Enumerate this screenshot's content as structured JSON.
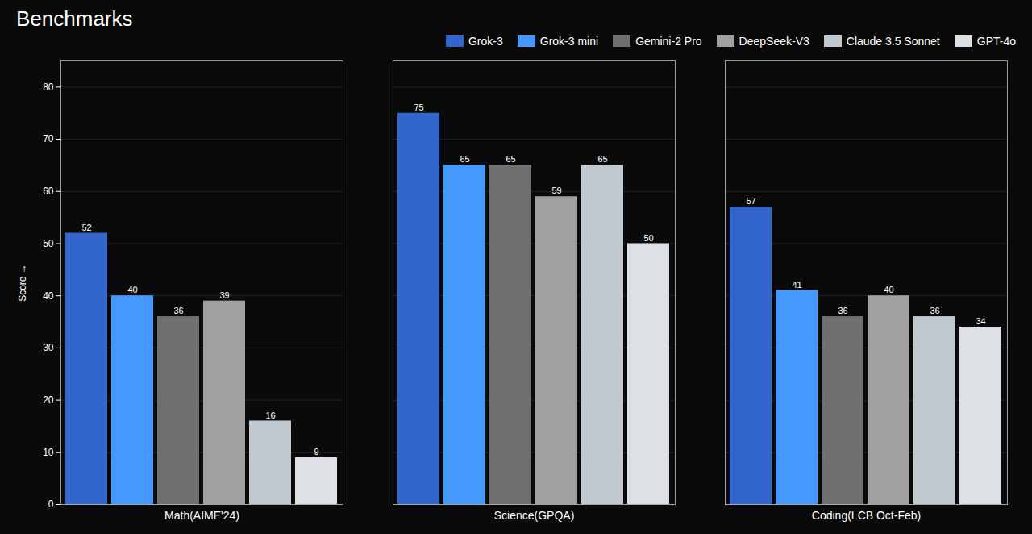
{
  "chart_data": {
    "type": "bar",
    "title": "Benchmarks",
    "categories": [
      "Math(AIME'24)",
      "Science(GPQA)",
      "Coding(LCB Oct-Feb)"
    ],
    "series": [
      {
        "name": "Grok-3",
        "color": "#3366cc",
        "values": [
          52,
          75,
          57
        ]
      },
      {
        "name": "Grok-3 mini",
        "color": "#4499ff",
        "values": [
          40,
          65,
          41
        ]
      },
      {
        "name": "Gemini-2 Pro",
        "color": "#707070",
        "values": [
          36,
          65,
          36
        ]
      },
      {
        "name": "DeepSeek-V3",
        "color": "#a0a0a0",
        "values": [
          39,
          59,
          40
        ]
      },
      {
        "name": "Claude 3.5 Sonnet",
        "color": "#c0c8d0",
        "values": [
          16,
          65,
          36
        ]
      },
      {
        "name": "GPT-4o",
        "color": "#dde0e5",
        "values": [
          9,
          50,
          34
        ]
      }
    ],
    "ylabel": "Score",
    "ylim": [
      0,
      85
    ],
    "yticks": [
      0,
      10,
      20,
      30,
      40,
      50,
      60,
      70,
      80
    ],
    "grid": true,
    "legend": "upper right",
    "data_labels": true
  }
}
